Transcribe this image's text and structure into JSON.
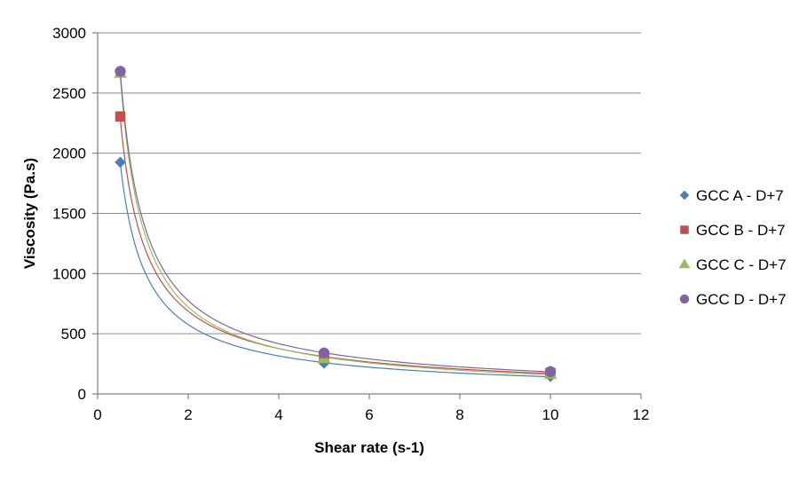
{
  "chart_data": {
    "type": "scatter",
    "title": "",
    "xlabel": "Shear rate (s-1)",
    "ylabel": "Viscosity (Pa.s)",
    "xlim": [
      0,
      12
    ],
    "ylim": [
      0,
      3000
    ],
    "x_ticks": [
      0,
      2,
      4,
      6,
      8,
      10,
      12
    ],
    "y_ticks": [
      0,
      500,
      1000,
      1500,
      2000,
      2500,
      3000
    ],
    "x_tick_labels": [
      "0",
      "2",
      "4",
      "6",
      "8",
      "10",
      "12"
    ],
    "y_tick_labels": [
      "0",
      "500",
      "1000",
      "1500",
      "2000",
      "2500",
      "3000"
    ],
    "grid": {
      "horizontal": true,
      "vertical": false
    },
    "legend_position": "right",
    "trendline": "power",
    "series": [
      {
        "name": "GCC A - D+7",
        "marker": "diamond",
        "color": "#4a7ebb",
        "points": [
          {
            "x": 0.5,
            "y": 1925
          },
          {
            "x": 5,
            "y": 255
          },
          {
            "x": 10,
            "y": 145
          }
        ]
      },
      {
        "name": "GCC B - D+7",
        "marker": "square",
        "color": "#c0504d",
        "points": [
          {
            "x": 0.5,
            "y": 2305
          },
          {
            "x": 5,
            "y": 300
          },
          {
            "x": 10,
            "y": 175
          }
        ]
      },
      {
        "name": "GCC C - D+7",
        "marker": "triangle",
        "color": "#9bbb59",
        "points": [
          {
            "x": 0.5,
            "y": 2665
          },
          {
            "x": 5,
            "y": 295
          },
          {
            "x": 10,
            "y": 165
          }
        ]
      },
      {
        "name": "GCC D - D+7",
        "marker": "circle",
        "color": "#8064a2",
        "points": [
          {
            "x": 0.5,
            "y": 2680
          },
          {
            "x": 5,
            "y": 340
          },
          {
            "x": 10,
            "y": 185
          }
        ]
      }
    ]
  }
}
